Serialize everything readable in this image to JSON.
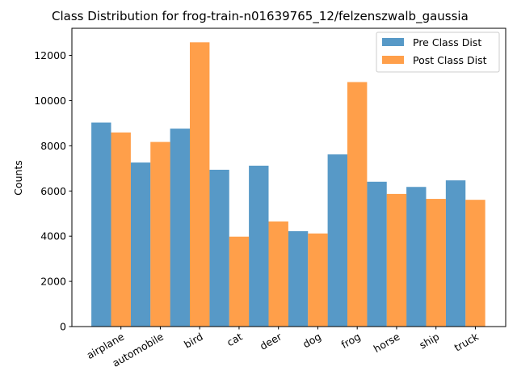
{
  "chart_data": {
    "type": "bar",
    "title": "Class Distribution for frog-train-n01639765_12/felzenszwalb_gaussia",
    "xlabel": "",
    "ylabel": "Counts",
    "categories": [
      "airplane",
      "automobile",
      "bird",
      "cat",
      "deer",
      "dog",
      "frog",
      "horse",
      "ship",
      "truck"
    ],
    "series": [
      {
        "name": "Pre Class Dist",
        "color": "#1f77b4",
        "values": [
          9030,
          7260,
          8760,
          6940,
          7120,
          4220,
          7620,
          6410,
          6180,
          6470
        ]
      },
      {
        "name": "Post Class Dist",
        "color": "#ff7f0e",
        "values": [
          8590,
          8170,
          12580,
          3980,
          4650,
          4120,
          10820,
          5870,
          5650,
          5610
        ]
      }
    ],
    "ylim": [
      0,
      13200
    ],
    "yticks": [
      0,
      2000,
      4000,
      6000,
      8000,
      10000,
      12000
    ],
    "legend_position": "top-right",
    "grid": false
  }
}
